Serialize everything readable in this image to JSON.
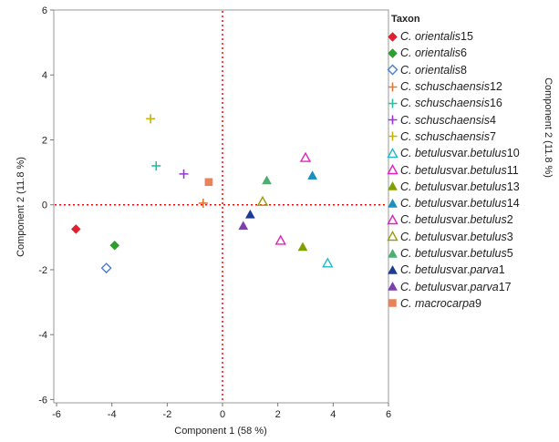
{
  "chart_data": {
    "type": "scatter",
    "xlabel": "Component 1  (58 %)",
    "ylabel": "Component 2  (11.8 %)",
    "xlim": [
      -6.1,
      6
    ],
    "ylim": [
      -6.1,
      6
    ],
    "xticks": [
      "-6",
      "-4",
      "-2",
      "0",
      "2",
      "4",
      "6"
    ],
    "yticks": [
      "-6",
      "-4",
      "-2",
      "0",
      "2",
      "4",
      "6"
    ],
    "reference_lines": {
      "x": 0,
      "y": 0,
      "color": "#ff0000",
      "style": "dotted"
    },
    "grid": false,
    "legend_title": "Taxon",
    "legend_position": "right",
    "series": [
      {
        "name_parts": [
          "C. orientalis",
          "15"
        ],
        "marker": "diamond-filled",
        "color": "#e0202e",
        "x": -5.3,
        "y": -0.75
      },
      {
        "name_parts": [
          "C. orientalis",
          "6"
        ],
        "marker": "diamond-filled",
        "color": "#2ca02c",
        "x": -3.9,
        "y": -1.25
      },
      {
        "name_parts": [
          "C. orientalis",
          "8"
        ],
        "marker": "diamond-open",
        "color": "#4a7bd6",
        "x": -4.2,
        "y": -1.95
      },
      {
        "name_parts": [
          "C. schuschaensis",
          "12"
        ],
        "marker": "plus",
        "color": "#e07b39",
        "x": -0.7,
        "y": 0.05
      },
      {
        "name_parts": [
          "C. schuschaensis",
          "16"
        ],
        "marker": "plus",
        "color": "#22c1a0",
        "x": -2.4,
        "y": 1.2
      },
      {
        "name_parts": [
          "C. schuschaensis",
          "4"
        ],
        "marker": "plus",
        "color": "#9933dd",
        "x": -1.4,
        "y": 0.95
      },
      {
        "name_parts": [
          "C. schuschaensis",
          "7"
        ],
        "marker": "plus",
        "color": "#c8b400",
        "x": -2.6,
        "y": 2.65
      },
      {
        "name_parts": [
          "C. betulus",
          " var. ",
          "betulus",
          "10"
        ],
        "marker": "triangle-open",
        "color": "#22b8c8",
        "x": 3.8,
        "y": -1.8
      },
      {
        "name_parts": [
          "C. betulus",
          " var. ",
          "betulus",
          "11"
        ],
        "marker": "triangle-open",
        "color": "#e020c0",
        "x": 3.0,
        "y": 1.45
      },
      {
        "name_parts": [
          "C. betulus",
          " var. ",
          "betulus",
          "13"
        ],
        "marker": "triangle-filled",
        "color": "#7fa000",
        "x": 2.9,
        "y": -1.3
      },
      {
        "name_parts": [
          "C. betulus",
          " var. ",
          "betulus",
          "14"
        ],
        "marker": "triangle-filled",
        "color": "#1a8fc0",
        "x": 3.25,
        "y": 0.9
      },
      {
        "name_parts": [
          "C. betulus",
          " var. ",
          "betulus",
          "2"
        ],
        "marker": "triangle-open",
        "color": "#e020c0",
        "x": 2.1,
        "y": -1.1
      },
      {
        "name_parts": [
          "C. betulus",
          " var. ",
          "betulus",
          "3"
        ],
        "marker": "triangle-open",
        "color": "#9a9a10",
        "x": 1.45,
        "y": 0.1
      },
      {
        "name_parts": [
          "C. betulus",
          " var. ",
          "betulus",
          "5"
        ],
        "marker": "triangle-filled",
        "color": "#4caf70",
        "x": 1.6,
        "y": 0.75
      },
      {
        "name_parts": [
          "C. betulus",
          " var. ",
          "parva",
          "1"
        ],
        "marker": "triangle-filled",
        "color": "#1f3a93",
        "x": 1.0,
        "y": -0.3
      },
      {
        "name_parts": [
          "C. betulus",
          " var. ",
          "parva",
          "17"
        ],
        "marker": "triangle-filled",
        "color": "#7b3fb0",
        "x": 0.75,
        "y": -0.65
      },
      {
        "name_parts": [
          "C. macrocarpa",
          "9"
        ],
        "marker": "square-filled",
        "color": "#e8825a",
        "x": -0.5,
        "y": 0.7
      }
    ]
  }
}
